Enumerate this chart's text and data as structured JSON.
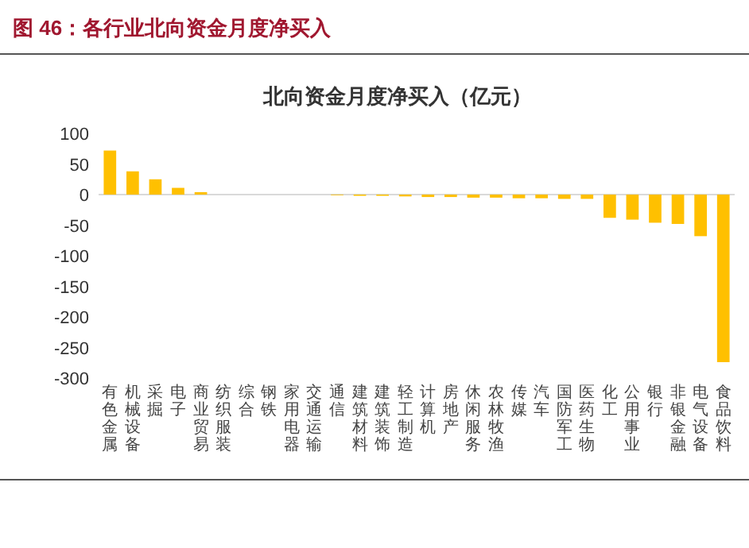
{
  "chart_data": {
    "type": "bar",
    "title": "图 46：各行业北向资金月度净买入",
    "subtitle": "北向资金月度净买入（亿元）",
    "categories": [
      "有色金属",
      "机械设备",
      "采掘",
      "电子",
      "商业贸易",
      "纺织服装",
      "综合",
      "钢铁",
      "家用电器",
      "交通运输",
      "通信",
      "建筑材料",
      "建筑装饰",
      "轻工制造",
      "计算机",
      "房地产",
      "休闲服务",
      "农林牧渔",
      "传媒",
      "汽车",
      "国防军工",
      "医药生物",
      "化工",
      "公用事业",
      "银行",
      "非银金融",
      "电气设备",
      "食品饮料"
    ],
    "values": [
      72,
      38,
      25,
      11,
      4,
      0,
      0,
      0,
      0,
      0,
      -1,
      -2,
      -2,
      -3,
      -4,
      -4,
      -5,
      -5,
      -6,
      -6,
      -7,
      -7,
      -38,
      -41,
      -46,
      -48,
      -68,
      -274
    ],
    "color": "#ffc000",
    "ylim": [
      -300,
      100
    ],
    "yticks": [
      100,
      50,
      0,
      -50,
      -100,
      -150,
      -200,
      -250,
      -300
    ]
  }
}
